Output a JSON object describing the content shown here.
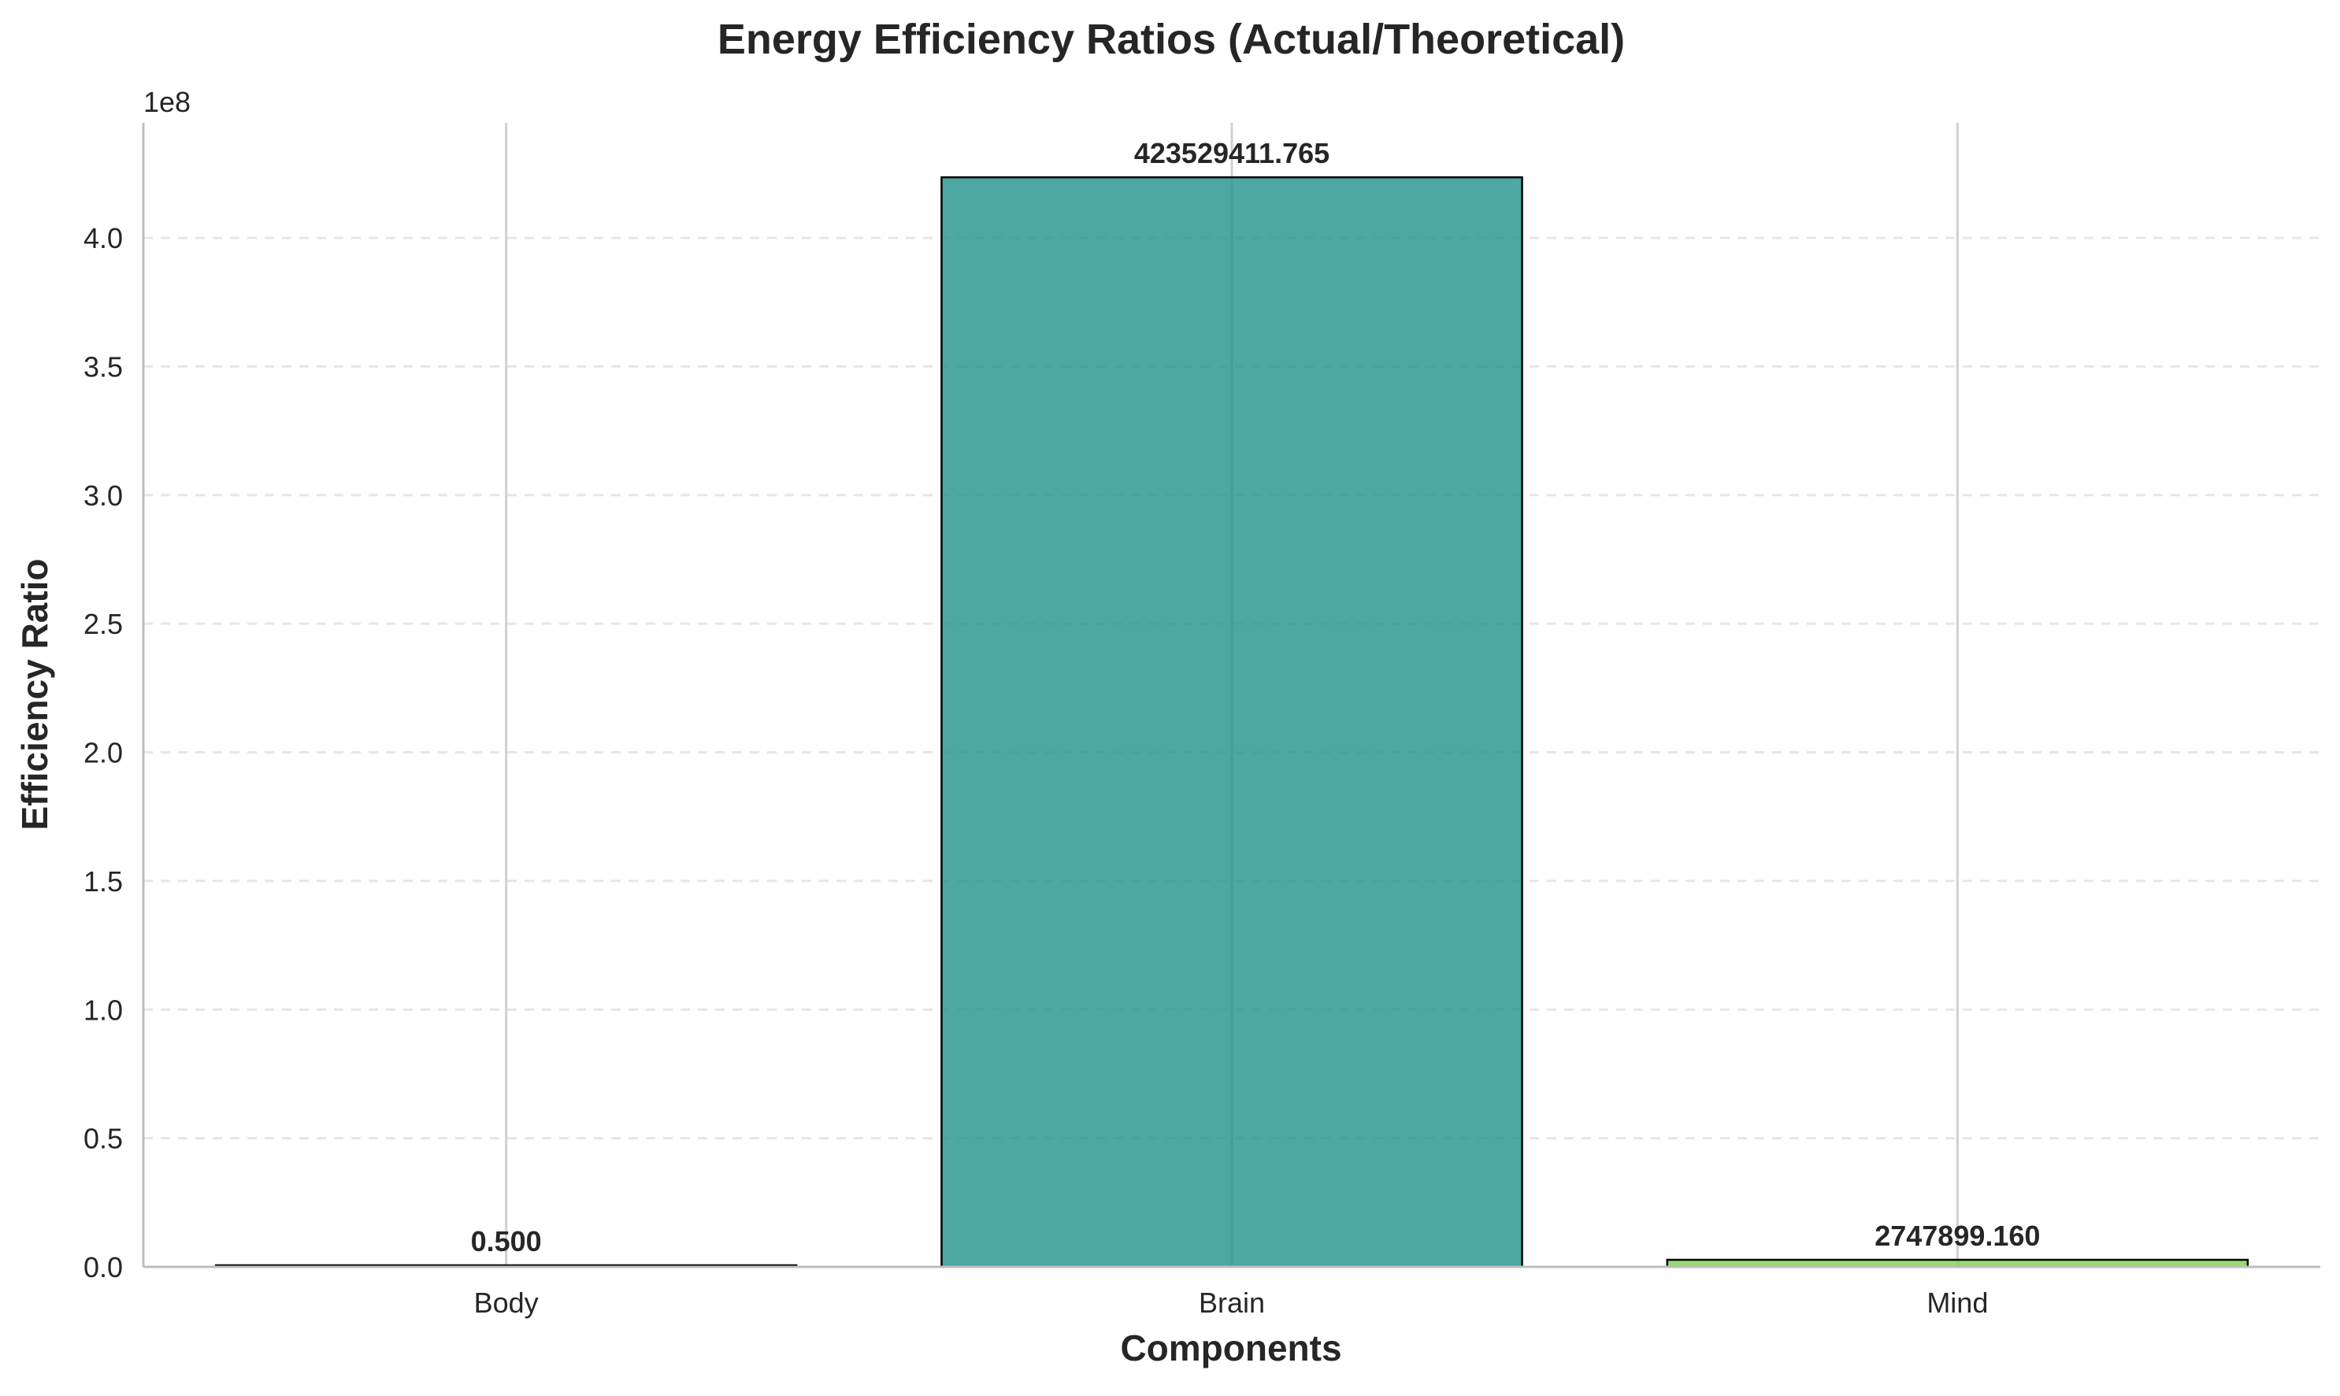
{
  "chart_data": {
    "type": "bar",
    "title": "Energy Efficiency Ratios (Actual/Theoretical)",
    "xlabel": "Components",
    "ylabel": "Efficiency Ratio",
    "y_offset_label": "1e8",
    "y_scale_factor": 100000000,
    "categories": [
      "Body",
      "Brain",
      "Mind"
    ],
    "values": [
      0.5,
      423529411.765,
      2747899.16
    ],
    "value_labels": [
      "0.500",
      "423529411.765",
      "2747899.160"
    ],
    "bar_colors": [
      "#440154",
      "#21918c",
      "#7ad151"
    ],
    "bar_opacity": 0.8,
    "ylim": [
      0,
      444705882.35
    ],
    "y_ticks": [
      0,
      0.5,
      1.0,
      1.5,
      2.0,
      2.5,
      3.0,
      3.5,
      4.0
    ],
    "y_tick_labels": [
      "0.0",
      "0.5",
      "1.0",
      "1.5",
      "2.0",
      "2.5",
      "3.0",
      "3.5",
      "4.0"
    ],
    "grid": {
      "x": "solid",
      "y": "dashed"
    },
    "legend": "none"
  }
}
